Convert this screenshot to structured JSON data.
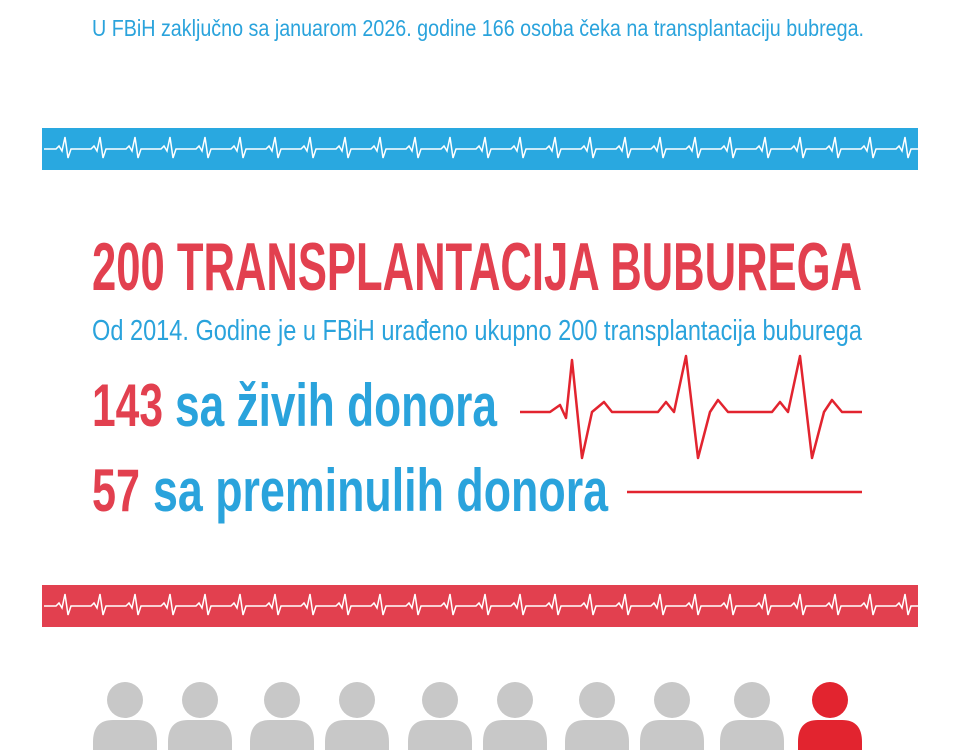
{
  "intro": "U FBiH zaključno sa januarom 2026. godine 166 osoba čeka na transplantaciju bubrega.",
  "headline": "200 TRANSPLANTACIJA BUBUREGA",
  "subtitle": "Od 2014. Godine je u FBiH urađeno ukupno 200 transplantacija buburega",
  "stats": [
    {
      "number": "143",
      "text": "sa živih donora"
    },
    {
      "number": "57",
      "text": "sa preminulih donora"
    }
  ]
}
